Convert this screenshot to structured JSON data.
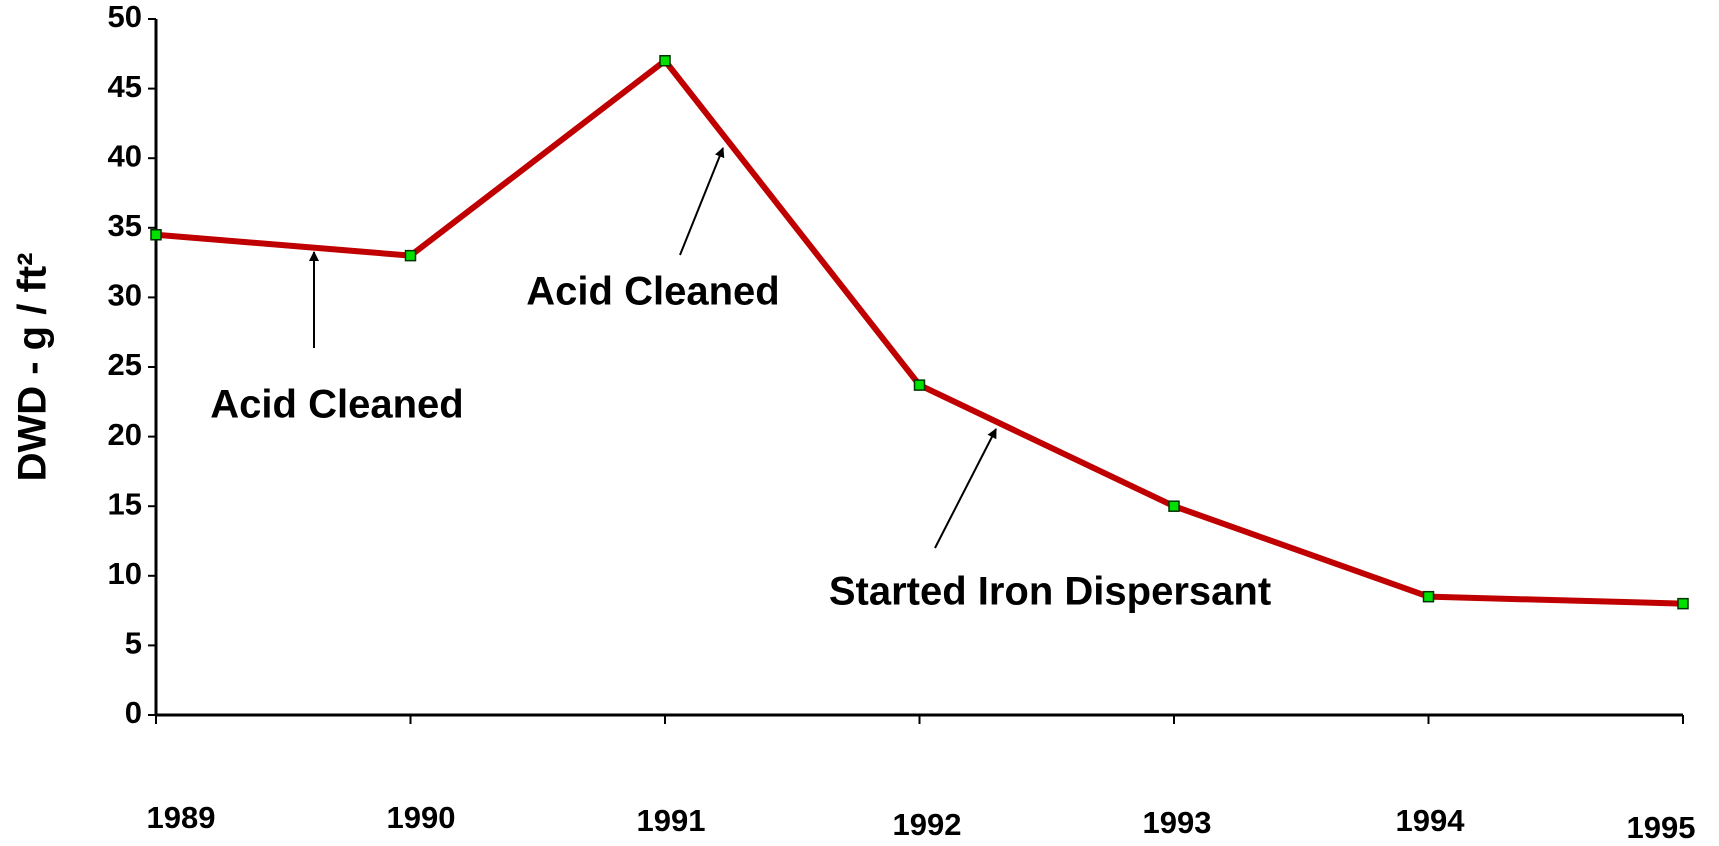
{
  "chart_data": {
    "type": "line",
    "y_label": "DWD - g / ft²",
    "categories": [
      "1989",
      "1990",
      "1991",
      "1992",
      "1993",
      "1994",
      "1995"
    ],
    "series": [
      {
        "color": "#c00000",
        "marker_color": "#00e000",
        "values": [
          34.5,
          33,
          47,
          23.7,
          15,
          8.5,
          8
        ]
      }
    ],
    "ylim": [
      0,
      50
    ],
    "yticks": [
      0,
      5,
      10,
      15,
      20,
      25,
      30,
      35,
      40,
      45,
      50
    ],
    "annotations": [
      {
        "text": "Acid Cleaned"
      },
      {
        "text": "Acid Cleaned"
      },
      {
        "text": "Started Iron Dispersant"
      }
    ]
  }
}
